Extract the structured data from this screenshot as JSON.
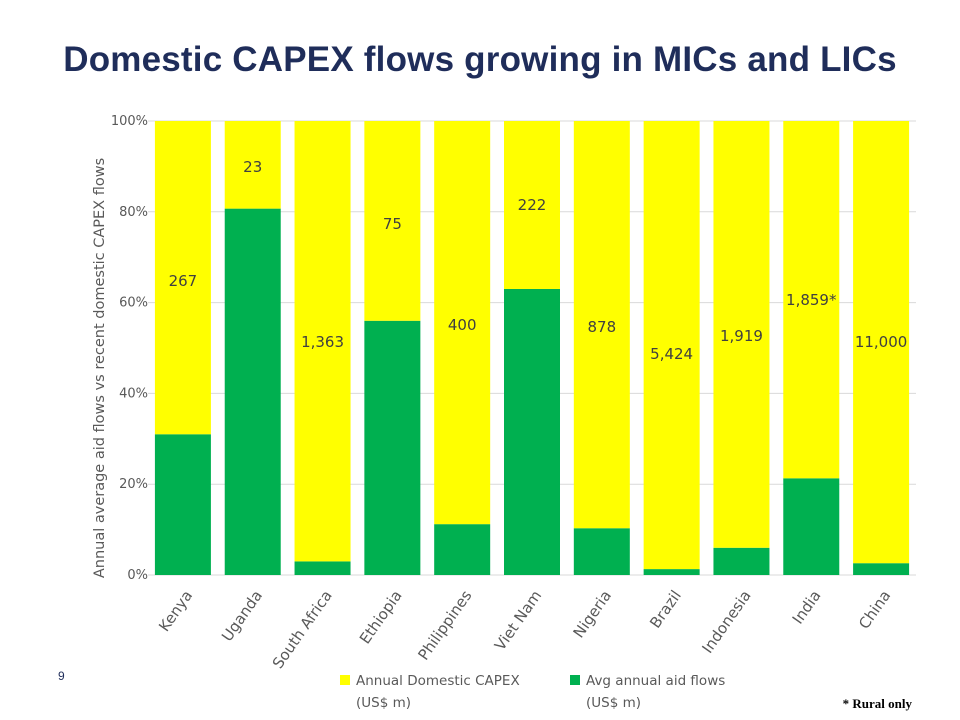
{
  "page": {
    "title": "Domestic CAPEX flows growing in MICs and LICs",
    "page_number": "9",
    "footnote": "* Rural only"
  },
  "colors": {
    "title": "#1f2d5a",
    "capex": "#ffff00",
    "aid": "#00b050",
    "grid": "#d9d9d9",
    "axis_text": "#595959"
  },
  "chart_data": {
    "type": "bar",
    "stacked": true,
    "percent": true,
    "categories": [
      "Kenya",
      "Uganda",
      "South Africa",
      "Ethiopia",
      "Philippines",
      "Viet Nam",
      "Nigeria",
      "Brazil",
      "Indonesia",
      "India",
      "China"
    ],
    "series": [
      {
        "name": "Avg annual aid flows (US$ m)",
        "color": "#00b050",
        "values": [
          31,
          80.7,
          3,
          56,
          11.2,
          63,
          10.3,
          1.3,
          6,
          21.3,
          2.6
        ]
      },
      {
        "name": "Annual Domestic CAPEX (US$ m)",
        "color": "#ffff00",
        "values": [
          69,
          19.3,
          97,
          44,
          88.8,
          37,
          89.7,
          98.7,
          94,
          78.7,
          97.4
        ]
      }
    ],
    "data_labels": [
      "267",
      "23",
      "1,363",
      "75",
      "400",
      "222",
      "878",
      "5,424",
      "1,919",
      "1,859*",
      "11,000"
    ],
    "ylabel": "Annual average aid flows vs recent domestic CAPEX flows",
    "ylim": [
      0,
      100
    ],
    "yticks": [
      "0%",
      "20%",
      "40%",
      "60%",
      "80%",
      "100%"
    ],
    "grid": true,
    "legend": [
      {
        "line1": "Annual Domestic CAPEX",
        "line2": "(US$ m)",
        "color": "#ffff00"
      },
      {
        "line1": "Avg annual aid flows",
        "line2": "(US$ m)",
        "color": "#00b050"
      }
    ],
    "legend_position": "bottom"
  }
}
